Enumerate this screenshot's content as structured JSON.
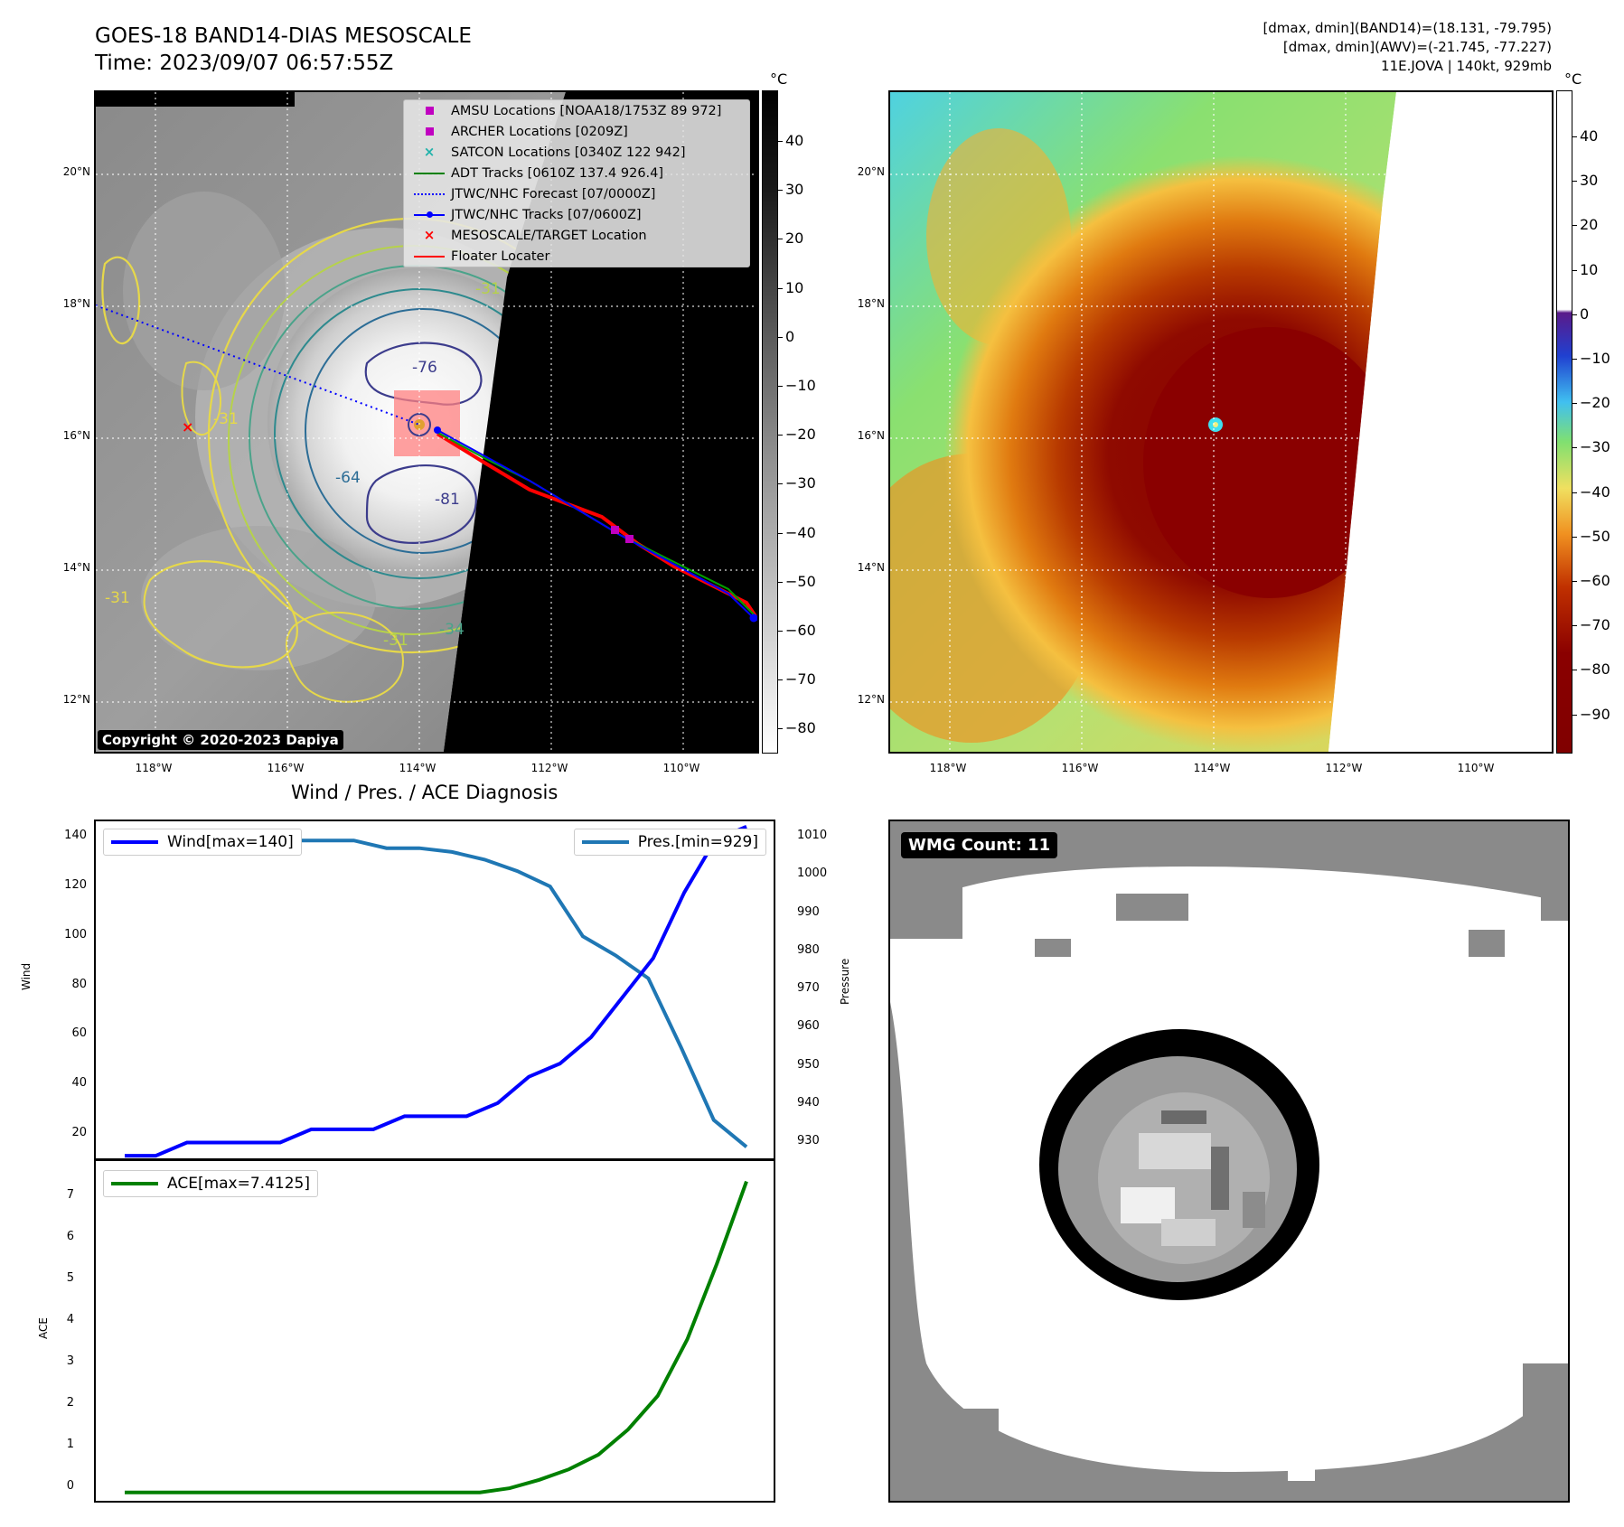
{
  "header": {
    "title_line1": "GOES-18 BAND14-DIAS MESOSCALE",
    "title_line2": "Time: 2023/09/07 06:57:55Z",
    "stats_line1": "[dmax, dmin](BAND14)=(18.131, -79.795)",
    "stats_line2": "[dmax, dmin](AWV)=(-21.745, -77.227)",
    "stats_line3": "11E.JOVA | 140kt, 929mb"
  },
  "map_axes": {
    "lat_labels": [
      "20°N",
      "18°N",
      "16°N",
      "14°N",
      "12°N"
    ],
    "lon_labels": [
      "118°W",
      "116°W",
      "114°W",
      "112°W",
      "110°W"
    ]
  },
  "ir_panel": {
    "cbar_unit": "°C",
    "cbar_ticks": [
      "40",
      "30",
      "20",
      "10",
      "0",
      "−10",
      "−20",
      "−30",
      "−40",
      "−50",
      "−60",
      "−70",
      "−80"
    ],
    "contour_labels": [
      "-76",
      "-64",
      "-81",
      "-31",
      "-31",
      "-34",
      "-31",
      "-31"
    ],
    "copyright": "Copyright © 2020-2023 Dapiya",
    "legend": [
      {
        "label": "AMSU Locations [NOAA18/1753Z 89 972]",
        "color": "#c000c0",
        "symbol": "square"
      },
      {
        "label": "ARCHER Locations [0209Z]",
        "color": "#c000c0",
        "symbol": "square"
      },
      {
        "label": "SATCON Locations [0340Z 122 942]",
        "color": "#20b2aa",
        "symbol": "x"
      },
      {
        "label": "ADT Tracks [0610Z 137.4 926.4]",
        "color": "#008000",
        "symbol": "line"
      },
      {
        "label": "JTWC/NHC Forecast [07/0000Z]",
        "color": "#0000ff",
        "symbol": "dotted"
      },
      {
        "label": "JTWC/NHC Tracks [07/0600Z]",
        "color": "#0000ff",
        "symbol": "line-dot"
      },
      {
        "label": "MESOSCALE/TARGET Location",
        "color": "#ff0000",
        "symbol": "x"
      },
      {
        "label": "Floater Locater",
        "color": "#ff0000",
        "symbol": "line"
      }
    ]
  },
  "awv_panel": {
    "cbar_unit": "°C",
    "cbar_ticks": [
      "40",
      "30",
      "20",
      "10",
      "0",
      "−10",
      "−20",
      "−30",
      "−40",
      "−50",
      "−60",
      "−70",
      "−80",
      "−90"
    ]
  },
  "diagnosis": {
    "title": "Wind / Pres. / ACE Diagnosis",
    "wind_axis_label": "Wind",
    "pressure_axis_label": "Pressure",
    "ace_axis_label": "ACE",
    "wind_legend": "Wind[max=140]",
    "pres_legend": "Pres.[min=929]",
    "ace_legend": "ACE[max=7.4125]",
    "wind_ticks": [
      "140",
      "120",
      "100",
      "80",
      "60",
      "40",
      "20"
    ],
    "pres_ticks": [
      "1010",
      "1000",
      "990",
      "980",
      "970",
      "960",
      "950",
      "940",
      "930"
    ],
    "ace_ticks": [
      "7",
      "6",
      "5",
      "4",
      "3",
      "2",
      "1",
      "0"
    ],
    "colors": {
      "wind": "#0000ff",
      "pressure": "#1f77b4",
      "ace": "#008000"
    }
  },
  "wmg": {
    "badge": "WMG Count: 11"
  },
  "chart_data": [
    {
      "type": "line",
      "title": "Wind / Pres. / ACE Diagnosis",
      "ylabel": "Wind",
      "ylim": [
        14,
        142
      ],
      "series": [
        {
          "name": "Wind[max=140]",
          "values": [
            15,
            15,
            20,
            20,
            20,
            20,
            25,
            25,
            25,
            30,
            30,
            30,
            35,
            45,
            50,
            60,
            75,
            90,
            115,
            135,
            140
          ]
        }
      ]
    },
    {
      "type": "line",
      "ylabel": "Pressure",
      "ylim": [
        926,
        1014
      ],
      "series": [
        {
          "name": "Pres.[min=929]",
          "values": [
            1010,
            1010,
            1010,
            1010,
            1008,
            1009,
            1009,
            1009,
            1007,
            1007,
            1006,
            1004,
            1001,
            997,
            984,
            979,
            973,
            955,
            936,
            929
          ]
        }
      ]
    },
    {
      "type": "line",
      "ylabel": "ACE",
      "ylim": [
        -0.2,
        7.9
      ],
      "series": [
        {
          "name": "ACE[max=7.4125]",
          "values": [
            0,
            0,
            0,
            0,
            0,
            0,
            0,
            0,
            0,
            0,
            0,
            0,
            0,
            0.1,
            0.3,
            0.55,
            0.9,
            1.5,
            2.3,
            3.65,
            5.45,
            7.4125
          ]
        }
      ]
    }
  ]
}
